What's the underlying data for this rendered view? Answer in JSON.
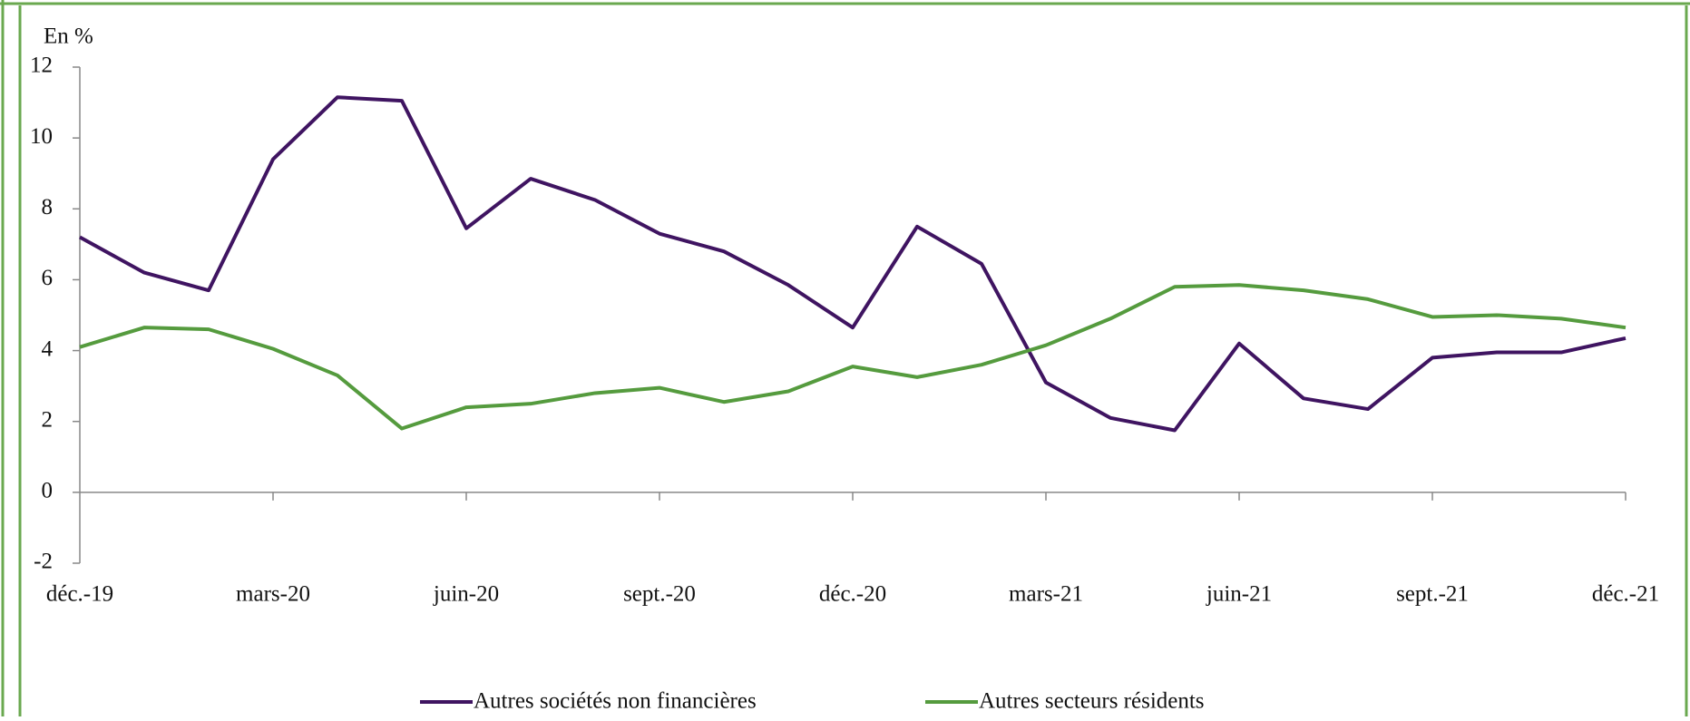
{
  "chart_data": {
    "type": "line",
    "y_axis_label": "En %",
    "categories": [
      "déc.-19",
      null,
      null,
      "mars-20",
      null,
      null,
      "juin-20",
      null,
      null,
      "sept.-20",
      null,
      null,
      "déc.-20",
      null,
      null,
      "mars-21",
      null,
      null,
      "juin-21",
      null,
      null,
      "sept.-21",
      null,
      null,
      "déc.-21"
    ],
    "series": [
      {
        "name": "Autres sociétés non financières",
        "color": "#3f1461",
        "values": [
          7.2,
          6.2,
          5.7,
          9.4,
          11.15,
          11.05,
          7.45,
          8.85,
          8.25,
          7.3,
          6.8,
          5.85,
          4.65,
          7.5,
          6.45,
          3.1,
          2.1,
          1.75,
          4.2,
          2.65,
          2.35,
          3.8,
          3.95,
          3.95,
          4.35
        ]
      },
      {
        "name": "Autres secteurs résidents",
        "color": "#559b3e",
        "values": [
          4.1,
          4.65,
          4.6,
          4.05,
          3.3,
          1.8,
          2.4,
          2.5,
          2.8,
          2.95,
          2.55,
          2.85,
          3.55,
          3.25,
          3.6,
          4.15,
          4.9,
          5.8,
          5.85,
          5.7,
          5.45,
          4.95,
          5.0,
          4.9,
          4.65
        ]
      }
    ],
    "ylim": [
      -2,
      12
    ],
    "yticks": [
      -2,
      0,
      2,
      4,
      6,
      8,
      10,
      12
    ],
    "legend": "bottom"
  }
}
